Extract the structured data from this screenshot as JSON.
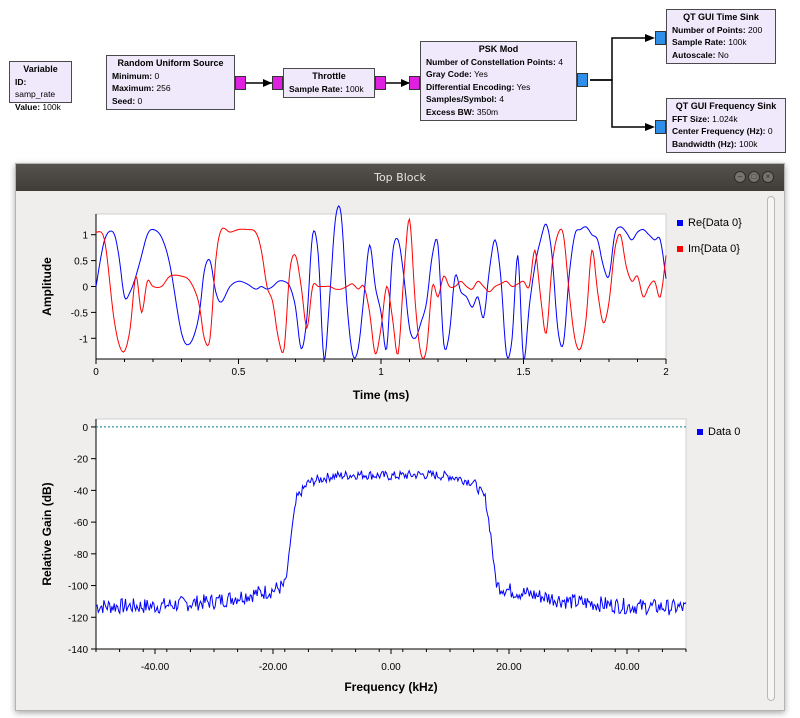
{
  "flowgraph": {
    "variable": {
      "title": "Variable",
      "rows": [
        [
          "ID:",
          "samp_rate"
        ],
        [
          "Value:",
          "100k"
        ]
      ]
    },
    "random_source": {
      "title": "Random Uniform Source",
      "rows": [
        [
          "Minimum:",
          "0"
        ],
        [
          "Maximum:",
          "256"
        ],
        [
          "Seed:",
          "0"
        ]
      ]
    },
    "throttle": {
      "title": "Throttle",
      "rows": [
        [
          "Sample Rate:",
          "100k"
        ]
      ]
    },
    "psk_mod": {
      "title": "PSK Mod",
      "rows": [
        [
          "Number of Constellation Points:",
          "4"
        ],
        [
          "Gray Code:",
          "Yes"
        ],
        [
          "Differential Encoding:",
          "Yes"
        ],
        [
          "Samples/Symbol:",
          "4"
        ],
        [
          "Excess BW:",
          "350m"
        ]
      ]
    },
    "time_sink": {
      "title": "QT GUI Time Sink",
      "rows": [
        [
          "Number of Points:",
          "200"
        ],
        [
          "Sample Rate:",
          "100k"
        ],
        [
          "Autoscale:",
          "No"
        ]
      ]
    },
    "freq_sink": {
      "title": "QT GUI Frequency Sink",
      "rows": [
        [
          "FFT Size:",
          "1.024k"
        ],
        [
          "Center Frequency (Hz):",
          "0"
        ],
        [
          "Bandwidth (Hz):",
          "100k"
        ]
      ]
    }
  },
  "window": {
    "title": "Top Block"
  },
  "colors": {
    "re": "#0000ff",
    "im": "#ff0000",
    "data0": "#0000ff",
    "ref": "#008080"
  },
  "chart_data": [
    {
      "type": "line",
      "xlabel": "Time (ms)",
      "ylabel": "Amplitude",
      "xlim": [
        0,
        2
      ],
      "ylim": [
        -1.4,
        1.4
      ],
      "xticks": [
        "0",
        "0.5",
        "1",
        "1.5",
        "2"
      ],
      "yticks": [
        "1",
        "0.5",
        "0",
        "-0.5",
        "-1"
      ],
      "ytick_values": [
        1,
        0.5,
        0,
        -0.5,
        -1
      ],
      "xtick_values": [
        0,
        0.5,
        1,
        1.5,
        2
      ],
      "series": [
        {
          "name": "Re{Data 0}",
          "x": [
            0,
            0.03,
            0.06,
            0.08,
            0.1,
            0.12,
            0.14,
            0.16,
            0.18,
            0.2,
            0.23,
            0.26,
            0.3,
            0.33,
            0.36,
            0.38,
            0.4,
            0.42,
            0.44,
            0.47,
            0.5,
            0.53,
            0.56,
            0.58,
            0.6,
            0.62,
            0.64,
            0.66,
            0.68,
            0.7,
            0.72,
            0.74,
            0.76,
            0.78,
            0.8,
            0.82,
            0.84,
            0.86,
            0.88,
            0.9,
            0.92,
            0.94,
            0.96,
            0.98,
            1.0,
            1.02,
            1.04,
            1.06,
            1.08,
            1.1,
            1.12,
            1.14,
            1.16,
            1.18,
            1.2,
            1.22,
            1.24,
            1.26,
            1.28,
            1.3,
            1.32,
            1.34,
            1.36,
            1.38,
            1.4,
            1.42,
            1.44,
            1.46,
            1.48,
            1.5,
            1.52,
            1.54,
            1.56,
            1.58,
            1.6,
            1.62,
            1.64,
            1.66,
            1.68,
            1.7,
            1.72,
            1.74,
            1.76,
            1.78,
            1.8,
            1.82,
            1.84,
            1.86,
            1.88,
            1.9,
            1.92,
            1.94,
            1.96,
            1.98,
            2.0
          ],
          "y": [
            0,
            0.9,
            1.05,
            0.6,
            -0.2,
            -0.1,
            0.2,
            0.6,
            1.0,
            1.1,
            0.95,
            0.4,
            -0.9,
            -1.1,
            -0.6,
            0.3,
            0.5,
            -0.1,
            -0.3,
            0.0,
            0.1,
            0.05,
            -0.05,
            0.0,
            -0.05,
            0.0,
            0.1,
            0.1,
            0.0,
            -0.4,
            -1.2,
            -0.6,
            1.0,
            0.6,
            -1.4,
            -0.2,
            1.3,
            1.4,
            -0.3,
            -1.3,
            -1.2,
            -0.2,
            0.8,
            0.0,
            -0.5,
            -1.2,
            0.6,
            0.9,
            0.2,
            -0.8,
            -1.0,
            -0.7,
            -0.3,
            0.6,
            0.8,
            -1.1,
            -0.9,
            0.2,
            -0.1,
            -0.2,
            -0.4,
            -0.2,
            -0.6,
            0.3,
            0.9,
            0.2,
            -1.3,
            -1.0,
            0.6,
            -1.4,
            -0.4,
            0.4,
            0.9,
            1.2,
            0.6,
            -0.8,
            -1.1,
            0.2,
            1.0,
            1.1,
            1.15,
            1.0,
            0.9,
            0.4,
            0.2,
            1.0,
            1.15,
            1.05,
            0.9,
            1.05,
            1.1,
            1.0,
            0.9,
            0.9,
            0.15
          ]
        },
        {
          "name": "Im{Data 0}",
          "x": [
            0,
            0.03,
            0.06,
            0.08,
            0.1,
            0.12,
            0.14,
            0.16,
            0.18,
            0.2,
            0.23,
            0.26,
            0.3,
            0.33,
            0.36,
            0.38,
            0.4,
            0.42,
            0.44,
            0.47,
            0.5,
            0.53,
            0.56,
            0.58,
            0.6,
            0.62,
            0.64,
            0.66,
            0.68,
            0.7,
            0.72,
            0.74,
            0.76,
            0.78,
            0.8,
            0.82,
            0.84,
            0.86,
            0.88,
            0.9,
            0.92,
            0.94,
            0.96,
            0.98,
            1.0,
            1.02,
            1.04,
            1.06,
            1.08,
            1.1,
            1.12,
            1.14,
            1.16,
            1.18,
            1.2,
            1.22,
            1.24,
            1.26,
            1.28,
            1.3,
            1.32,
            1.34,
            1.36,
            1.38,
            1.4,
            1.42,
            1.44,
            1.46,
            1.48,
            1.5,
            1.52,
            1.54,
            1.56,
            1.58,
            1.6,
            1.62,
            1.64,
            1.66,
            1.68,
            1.7,
            1.72,
            1.74,
            1.76,
            1.78,
            1.8,
            1.82,
            1.84,
            1.86,
            1.88,
            1.9,
            1.92,
            1.94,
            1.96,
            1.98,
            2.0
          ],
          "y": [
            1.05,
            0.9,
            -0.5,
            -1.1,
            -1.25,
            -0.8,
            0.2,
            -0.5,
            0.1,
            0.0,
            0.0,
            0.2,
            0.2,
            0.1,
            -0.3,
            -1.0,
            -1.0,
            0.5,
            1.1,
            1.05,
            1.1,
            1.1,
            1.05,
            0.7,
            0.0,
            -0.3,
            -1.0,
            -1.2,
            0.3,
            0.6,
            0.0,
            -0.8,
            0.0,
            0.0,
            0.0,
            0.0,
            -0.05,
            -0.05,
            0.0,
            0.05,
            -0.05,
            0.0,
            -0.5,
            -1.3,
            -0.8,
            0.0,
            -0.6,
            -1.3,
            0.2,
            1.3,
            -0.3,
            -1.3,
            -1.2,
            0.0,
            -0.2,
            0.2,
            0.0,
            0.0,
            0.1,
            0.0,
            -0.05,
            0.1,
            0.0,
            -0.1,
            0.0,
            0.05,
            0.1,
            0.0,
            0.05,
            0.1,
            0.0,
            0.7,
            -0.2,
            -0.9,
            0.4,
            1.0,
            1.0,
            -0.1,
            -1.0,
            -1.2,
            -0.6,
            0.7,
            -0.1,
            -0.7,
            -0.3,
            0.7,
            1.0,
            0.4,
            0.1,
            0.2,
            -0.2,
            0.0,
            0.1,
            -0.2,
            0.6
          ]
        }
      ]
    },
    {
      "type": "line",
      "xlabel": "Frequency (kHz)",
      "ylabel": "Relative Gain (dB)",
      "xlim": [
        -50,
        50
      ],
      "ylim": [
        -140,
        5
      ],
      "xticks": [
        "-40.00",
        "-20.00",
        "0.00",
        "20.00",
        "40.00"
      ],
      "xtick_values": [
        -40,
        -20,
        0,
        20,
        40
      ],
      "yticks": [
        "0",
        "-20",
        "-40",
        "-60",
        "-80",
        "-100",
        "-120",
        "-140"
      ],
      "ytick_values": [
        0,
        -20,
        -40,
        -60,
        -80,
        -100,
        -120,
        -140
      ],
      "series": [
        {
          "name": "Data 0",
          "x": [
            -50,
            -40,
            -30,
            -20,
            -18,
            -17.5,
            -17,
            -16,
            -14,
            -10,
            -5,
            0,
            5,
            10,
            14,
            16,
            17,
            17.5,
            18,
            20,
            30,
            40,
            50
          ],
          "y": [
            -113,
            -113,
            -110,
            -103,
            -100,
            -90,
            -70,
            -45,
            -35,
            -31,
            -30,
            -31,
            -30,
            -31,
            -35,
            -45,
            -70,
            -90,
            -100,
            -103,
            -110,
            -113,
            -114
          ]
        }
      ]
    }
  ]
}
